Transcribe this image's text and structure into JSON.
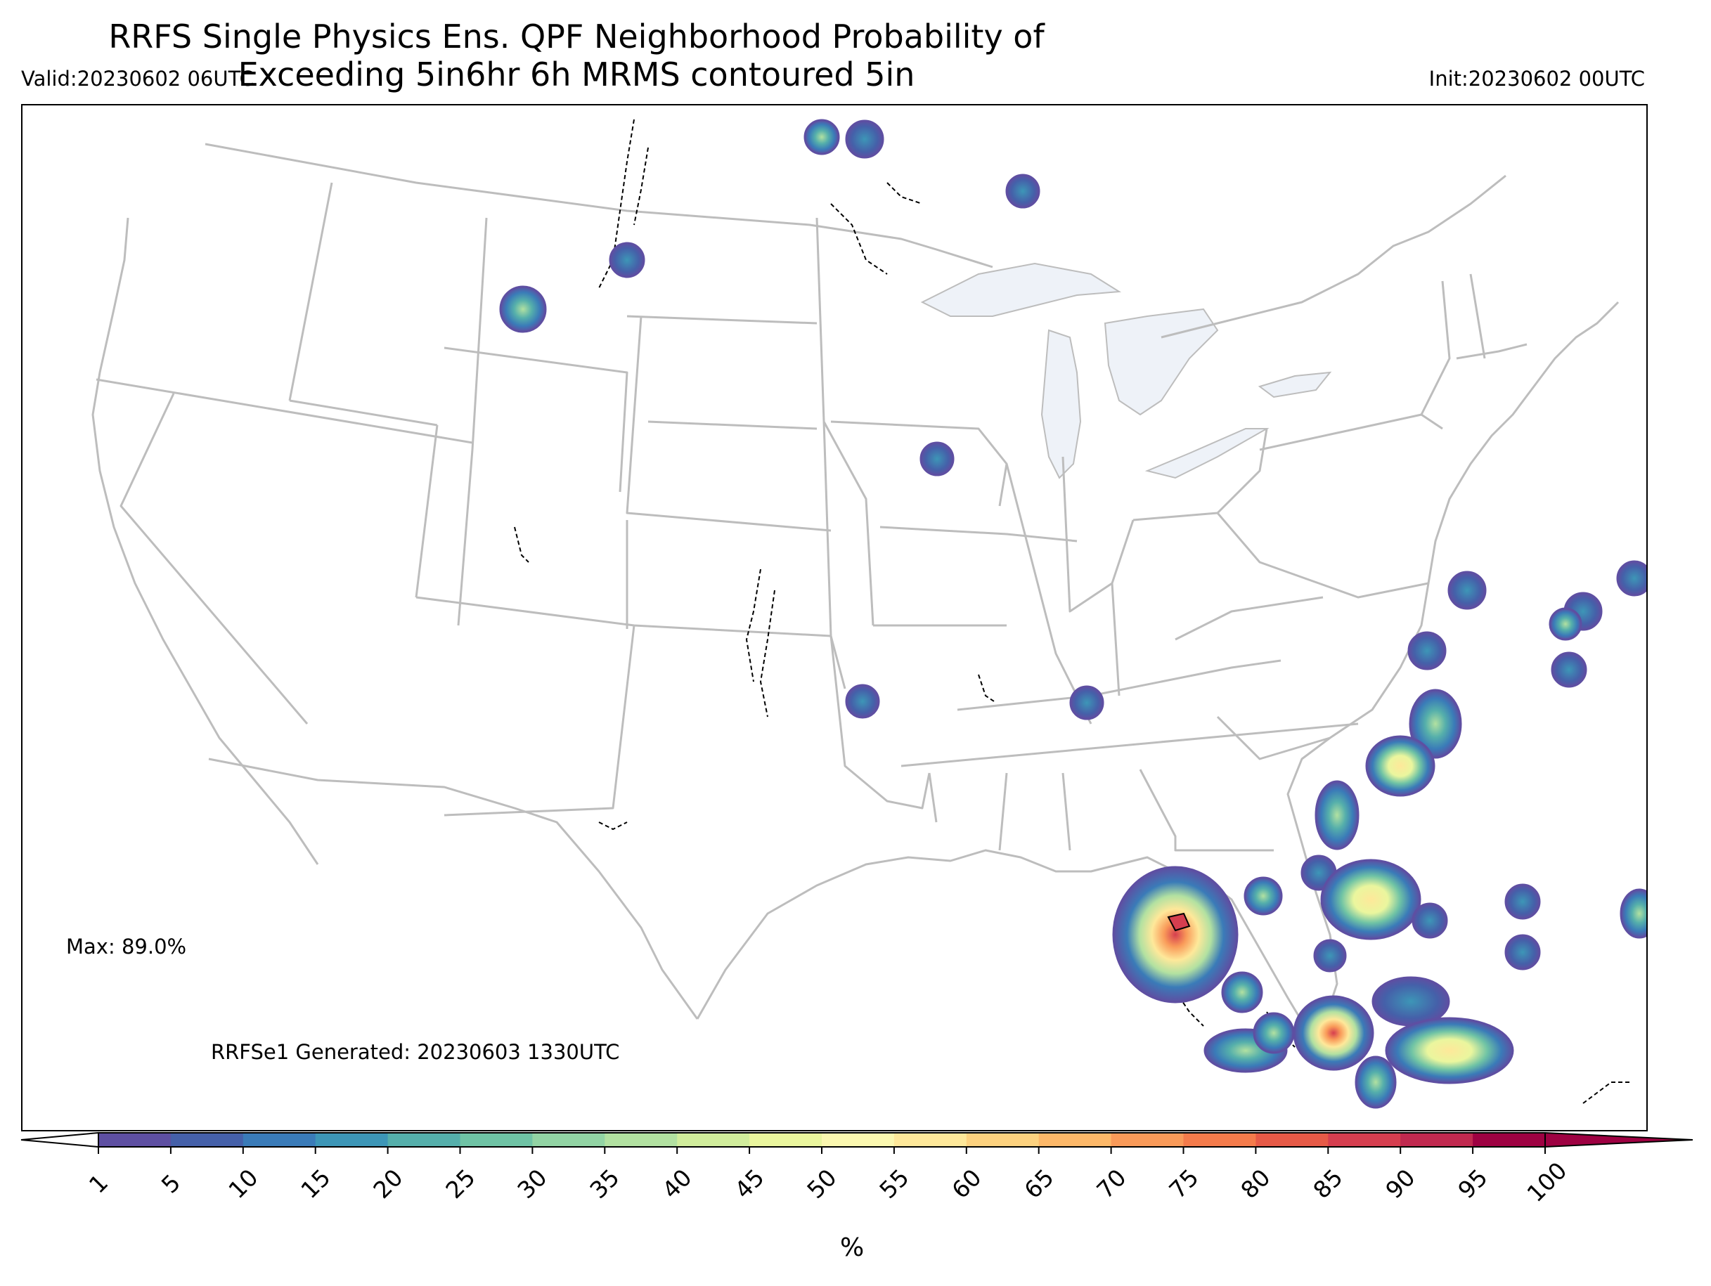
{
  "header": {
    "title_line1": "RRFS Single Physics Ens. QPF Neighborhood Probability of",
    "title_line2": "Exceeding 5in6hr 6h MRMS contoured 5in",
    "valid": "Valid:20230602 06UTC",
    "init": "Init:20230602 00UTC"
  },
  "map": {
    "max_label": "Max: 89.0%",
    "generated_label": "RRFSe1 Generated: 20230603 1330UTC",
    "colors": {
      "boundary": "#bdbdbd",
      "lakes": "#eef2f8",
      "contour": "#000000"
    },
    "probability_blobs": [
      {
        "region": "Northern Montana",
        "max_pct": 5
      },
      {
        "region": "Western Montana",
        "max_pct": 20
      },
      {
        "region": "North Dakota / Saskatchewan border",
        "max_pct": 15
      },
      {
        "region": "North Dakota border east",
        "max_pct": 5
      },
      {
        "region": "Western Ontario",
        "max_pct": 5
      },
      {
        "region": "Eastern Iowa",
        "max_pct": 5
      },
      {
        "region": "Southeast Oklahoma",
        "max_pct": 5
      },
      {
        "region": "Tennessee",
        "max_pct": 5
      },
      {
        "region": "Atlantic off North Carolina",
        "max_pct": 40
      },
      {
        "region": "Western Atlantic",
        "max_pct": 15
      },
      {
        "region": "Northeast Gulf of Mexico",
        "max_pct": 89
      },
      {
        "region": "Western Atlantic off Florida",
        "max_pct": 55
      },
      {
        "region": "Southwest Florida",
        "max_pct": 75
      },
      {
        "region": "Bahamas",
        "max_pct": 55
      },
      {
        "region": "Florida Straits",
        "max_pct": 25
      }
    ]
  },
  "colorbar": {
    "units": "%",
    "ticks": [
      "1",
      "5",
      "10",
      "15",
      "20",
      "25",
      "30",
      "35",
      "40",
      "45",
      "50",
      "55",
      "60",
      "65",
      "70",
      "75",
      "80",
      "85",
      "90",
      "95",
      "100"
    ],
    "colors": [
      "#5e4fa2",
      "#4560a9",
      "#3a7bb8",
      "#3d96b7",
      "#55afab",
      "#6fc3a5",
      "#92d4a4",
      "#b2e1a1",
      "#d1ed9c",
      "#eaf69e",
      "#fbf8b0",
      "#fee89a",
      "#fdd27f",
      "#fdb869",
      "#f99a59",
      "#f47b4b",
      "#e65a47",
      "#d53e4f",
      "#c0294f",
      "#9e0142"
    ],
    "under_color": "#ffffff",
    "over_color": "#9e0142"
  }
}
